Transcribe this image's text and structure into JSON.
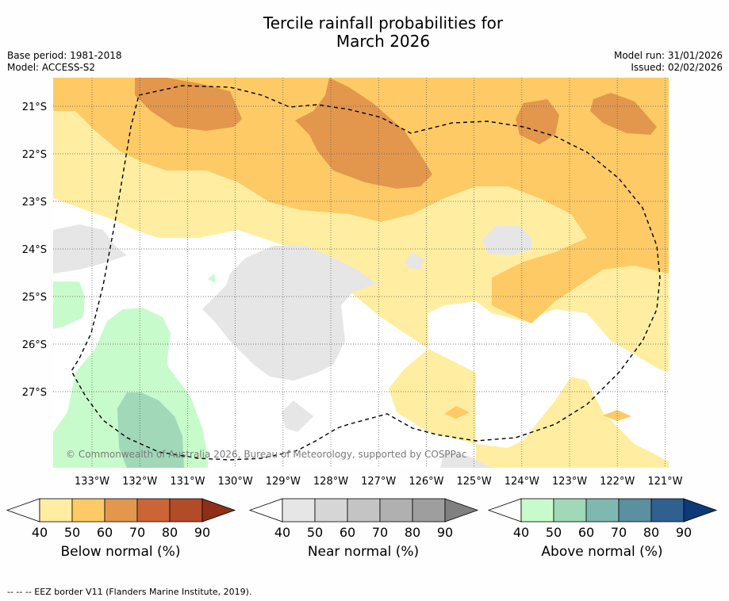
{
  "title_line1": "Tercile rainfall probabilities for",
  "title_line2": "March 2026",
  "meta": {
    "base_period": "Base period: 1981-2018",
    "model": "Model: ACCESS-S2",
    "model_run": "Model run: 31/01/2026",
    "issued": "Issued: 02/02/2026"
  },
  "map": {
    "lat_labels": [
      "21°S",
      "22°S",
      "23°S",
      "24°S",
      "25°S",
      "26°S",
      "27°S"
    ],
    "lon_labels": [
      "133°W",
      "132°W",
      "131°W",
      "130°W",
      "129°W",
      "128°W",
      "127°W",
      "126°W",
      "125°W",
      "124°W",
      "123°W",
      "122°W",
      "121°W"
    ],
    "lon_range": [
      -133.8,
      -120.9
    ],
    "lat_range": [
      -28.6,
      -20.4
    ],
    "copyright": "© Commonwealth of Australia 2026, Bureau of Meteorology, supported by COSPPac"
  },
  "colorbars": [
    {
      "name": "below",
      "label": "Below normal (%)",
      "ticks": [
        "40",
        "50",
        "60",
        "70",
        "80",
        "90"
      ],
      "colors": [
        "#ffeea1",
        "#fdca66",
        "#e2974d",
        "#cc6535",
        "#b24c27",
        "#8e2f17"
      ]
    },
    {
      "name": "near",
      "label": "Near normal (%)",
      "ticks": [
        "40",
        "50",
        "60",
        "70",
        "80",
        "90"
      ],
      "colors": [
        "#e6e6e6",
        "#d6d6d6",
        "#c4c4c4",
        "#b0b0b0",
        "#9e9e9e",
        "#808080"
      ]
    },
    {
      "name": "above",
      "label": "Above normal (%)",
      "ticks": [
        "40",
        "50",
        "60",
        "70",
        "80",
        "90"
      ],
      "colors": [
        "#c8fbcb",
        "#a0d8b8",
        "#7fb8b0",
        "#5a90a0",
        "#2f6090",
        "#0c3a78"
      ]
    }
  ],
  "footer": "--  --  -- EEZ border V11 (Flanders Marine Institute, 2019)."
}
